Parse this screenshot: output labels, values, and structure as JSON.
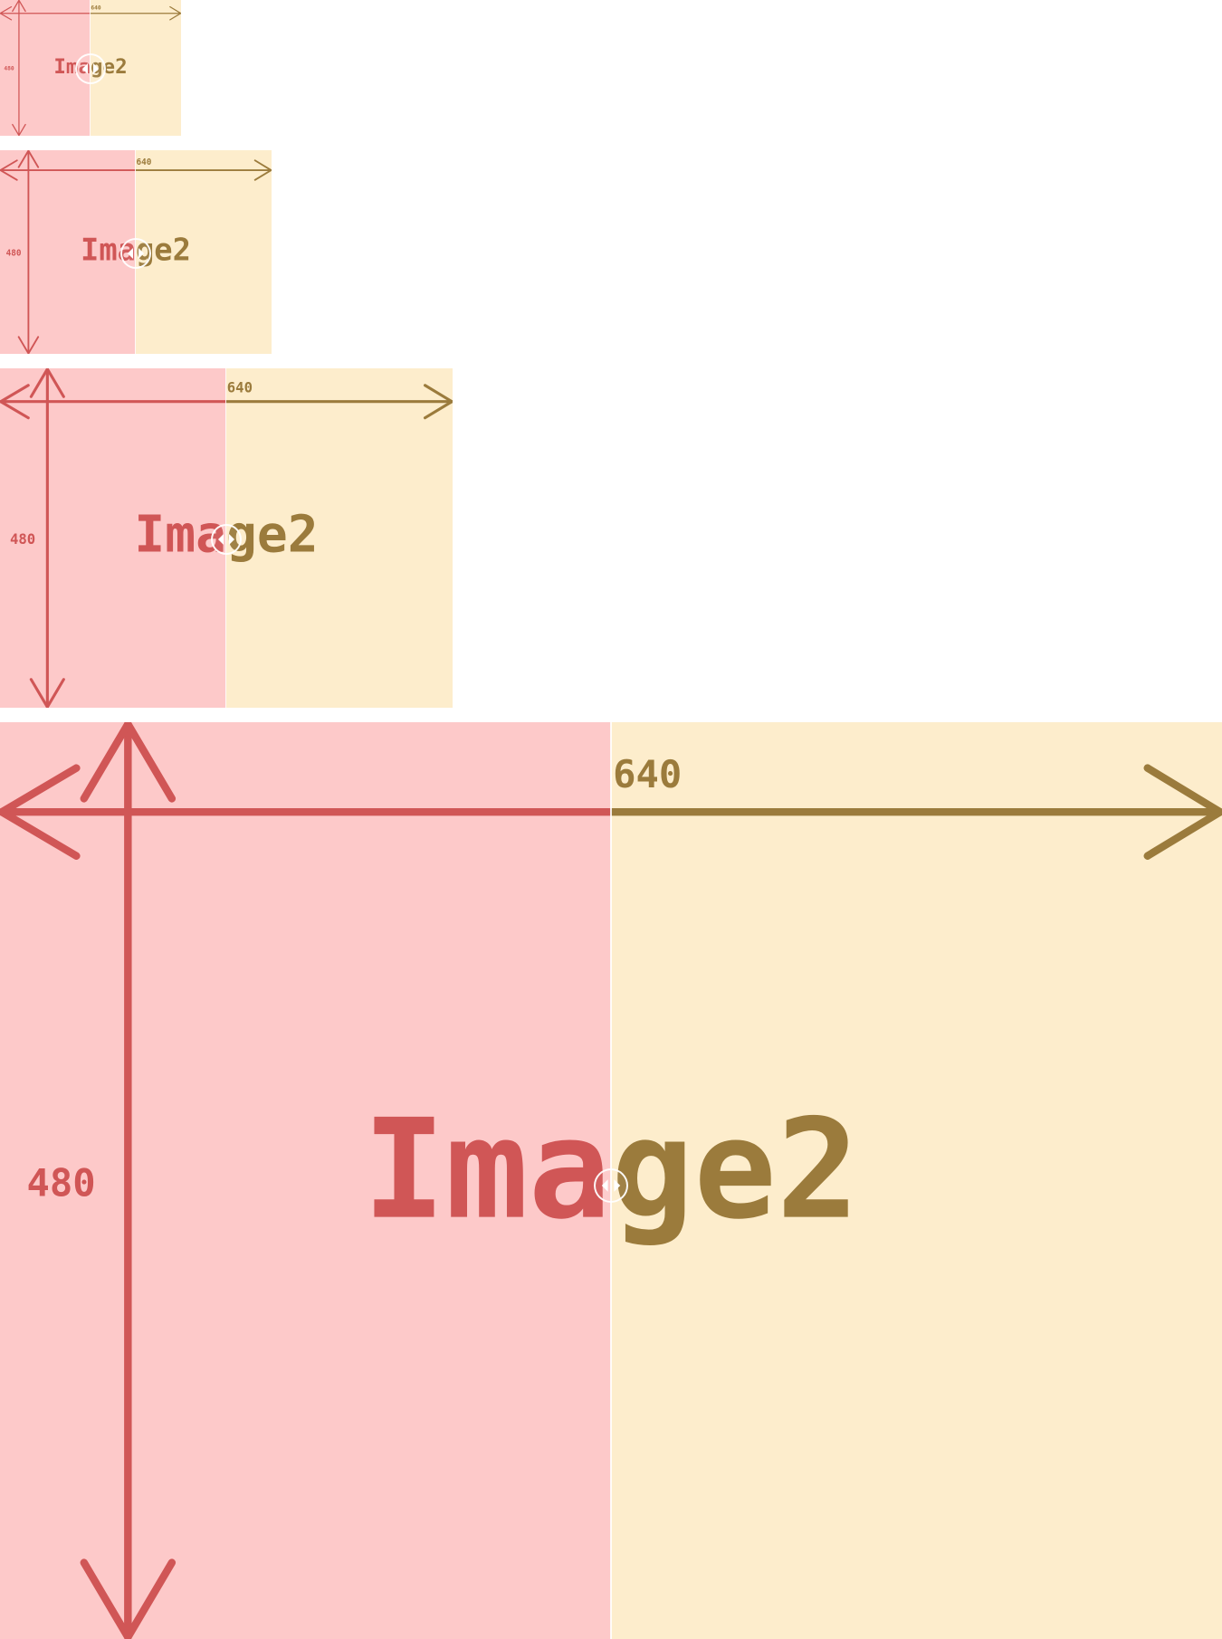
{
  "image_label": "Image2",
  "width_label": "640",
  "height_label": "480",
  "colors": {
    "left_bg": "#fdc9c9",
    "left_ink": "#d05656",
    "right_bg": "#fdedcc",
    "right_ink": "#9b7b3c",
    "divider": "#ffffff"
  },
  "handle_icon": "left-right-arrows-icon",
  "slider_position_percent": 50
}
